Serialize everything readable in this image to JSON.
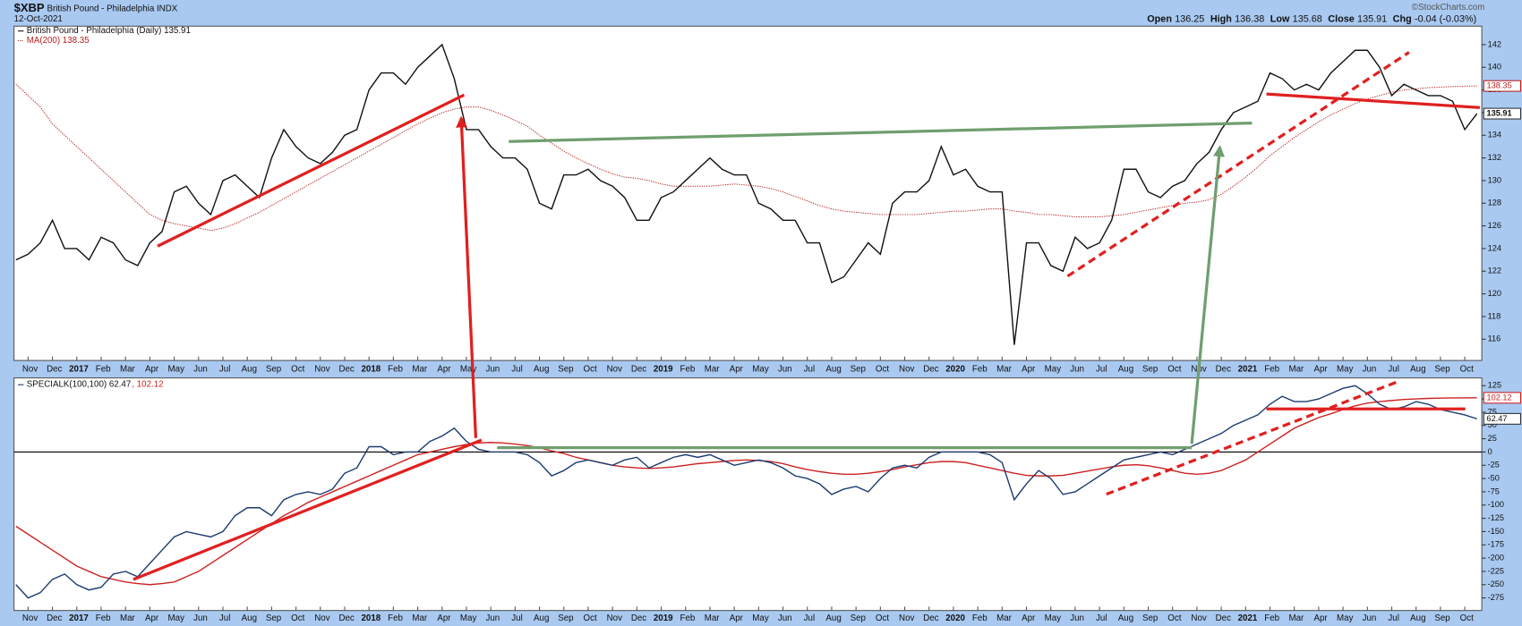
{
  "header": {
    "symbol": "$XBP",
    "name": "British Pound - Philadelphia INDX",
    "date": "12-Oct-2021",
    "credit": "©StockCharts.com",
    "quote": [
      {
        "label": "Open",
        "value": "136.25"
      },
      {
        "label": "High",
        "value": "136.38"
      },
      {
        "label": "Low",
        "value": "135.68"
      },
      {
        "label": "Close",
        "value": "135.91"
      },
      {
        "label": "Chg",
        "value": "-0.04 (-0.03%)"
      }
    ]
  },
  "chart_data": [
    {
      "type": "line",
      "categories": [
        null,
        "Nov",
        null,
        "Dec",
        null,
        "2017",
        null,
        "Feb",
        null,
        "Mar",
        null,
        "Apr",
        null,
        "May",
        null,
        "Jun",
        null,
        "Jul",
        null,
        "Aug",
        null,
        "Sep",
        null,
        "Oct",
        null,
        "Nov",
        null,
        "Dec",
        null,
        "2018",
        null,
        "Feb",
        null,
        "Mar",
        null,
        "Apr",
        null,
        "May",
        null,
        "Jun",
        null,
        "Jul",
        null,
        "Aug",
        null,
        "Sep",
        null,
        "Oct",
        null,
        "Nov",
        null,
        "Dec",
        null,
        "2019",
        null,
        "Feb",
        null,
        "Mar",
        null,
        "Apr",
        null,
        "May",
        null,
        "Jun",
        null,
        "Jul",
        null,
        "Aug",
        null,
        "Sep",
        null,
        "Oct",
        null,
        "Nov",
        null,
        "Dec",
        null,
        "2020",
        null,
        "Feb",
        null,
        "Mar",
        null,
        "Apr",
        null,
        "May",
        null,
        "Jun",
        null,
        "Jul",
        null,
        "Aug",
        null,
        "Sep",
        null,
        "Oct",
        null,
        "Nov",
        null,
        "Dec",
        null,
        "2021",
        null,
        "Feb",
        null,
        "Mar",
        null,
        "Apr",
        null,
        "May",
        null,
        "Jun",
        null,
        "Jul",
        null,
        "Aug",
        null,
        "Sep",
        null,
        "Oct",
        null
      ],
      "series": [
        {
          "name": "British Pound - Philadelphia (Daily) 135.91",
          "color": "#111111",
          "style": "solid",
          "values": [
            123,
            123.5,
            124.5,
            126.5,
            124,
            124,
            123,
            125,
            124.5,
            123,
            122.5,
            124.5,
            125.5,
            129,
            129.5,
            128,
            127,
            130,
            130.5,
            129.5,
            128.5,
            132,
            134.5,
            133,
            132,
            131.5,
            132.5,
            134,
            134.5,
            138,
            139.5,
            139.5,
            138.5,
            140,
            141,
            142,
            139,
            134.5,
            134.5,
            133,
            132,
            132,
            131,
            128,
            127.5,
            130.5,
            130.5,
            131,
            130,
            129.5,
            128.5,
            126.5,
            126.5,
            128.5,
            129,
            130,
            131,
            132,
            131,
            130.5,
            130.5,
            128,
            127.5,
            126.5,
            126.5,
            124.5,
            124.5,
            121,
            121.5,
            123,
            124.5,
            123.5,
            128,
            129,
            129,
            130,
            133,
            130.5,
            131,
            129.5,
            129,
            129,
            115.5,
            124.5,
            124.5,
            122.5,
            122,
            125,
            124,
            124.5,
            126.5,
            131,
            131,
            129,
            128.5,
            129.5,
            130,
            131.5,
            132.5,
            134.5,
            136,
            136.5,
            137,
            139.5,
            139,
            138,
            138.5,
            138,
            139.5,
            140.5,
            141.5,
            141.5,
            140,
            137.5,
            138.5,
            138,
            137.5,
            137.5,
            137,
            134.5,
            135.91
          ]
        },
        {
          "name": "MA(200) 138.35",
          "color": "#b52020",
          "style": "dotted",
          "values": [
            138.5,
            137.5,
            136.5,
            135,
            134,
            133,
            132,
            131,
            130,
            129,
            128,
            127,
            126.5,
            126.2,
            126,
            125.8,
            125.6,
            125.8,
            126.2,
            126.7,
            127.2,
            127.8,
            128.4,
            129,
            129.6,
            130.2,
            130.8,
            131.4,
            132,
            132.6,
            133.2,
            133.8,
            134.4,
            135,
            135.5,
            136,
            136.3,
            136.5,
            136.5,
            136.2,
            135.8,
            135.3,
            134.8,
            134,
            133.3,
            132.6,
            132,
            131.5,
            131,
            130.6,
            130.3,
            130.2,
            130,
            129.7,
            129.5,
            129.5,
            129.5,
            129.5,
            129.6,
            129.7,
            129.6,
            129.5,
            129.3,
            129,
            128.6,
            128.2,
            127.8,
            127.5,
            127.3,
            127.2,
            127.1,
            127,
            127,
            127,
            127,
            127.1,
            127.2,
            127.3,
            127.3,
            127.4,
            127.5,
            127.5,
            127.3,
            127.2,
            127,
            127,
            126.9,
            126.8,
            126.8,
            126.8,
            126.9,
            127,
            127.2,
            127.4,
            127.6,
            127.8,
            128,
            128.1,
            128.3,
            128.8,
            129.5,
            130.3,
            131.2,
            132.2,
            133,
            133.8,
            134.5,
            135.2,
            135.8,
            136.3,
            136.8,
            137.2,
            137.5,
            137.8,
            138,
            138.1,
            138.2,
            138.25,
            138.3,
            138.33,
            138.35
          ]
        }
      ],
      "ylim": [
        114.12,
        143.63
      ],
      "yticks": [
        116,
        118,
        120,
        122,
        124,
        126,
        128,
        130,
        132,
        134,
        136,
        138,
        140,
        142
      ],
      "grid": false
    },
    {
      "type": "line",
      "categories": [
        null,
        "Nov",
        null,
        "Dec",
        null,
        "2017",
        null,
        "Feb",
        null,
        "Mar",
        null,
        "Apr",
        null,
        "May",
        null,
        "Jun",
        null,
        "Jul",
        null,
        "Aug",
        null,
        "Sep",
        null,
        "Oct",
        null,
        "Nov",
        null,
        "Dec",
        null,
        "2018",
        null,
        "Feb",
        null,
        "Mar",
        null,
        "Apr",
        null,
        "May",
        null,
        "Jun",
        null,
        "Jul",
        null,
        "Aug",
        null,
        "Sep",
        null,
        "Oct",
        null,
        "Nov",
        null,
        "Dec",
        null,
        "2019",
        null,
        "Feb",
        null,
        "Mar",
        null,
        "Apr",
        null,
        "May",
        null,
        "Jun",
        null,
        "Jul",
        null,
        "Aug",
        null,
        "Sep",
        null,
        "Oct",
        null,
        "Nov",
        null,
        "Dec",
        null,
        "2020",
        null,
        "Feb",
        null,
        "Mar",
        null,
        "Apr",
        null,
        "May",
        null,
        "Jun",
        null,
        "Jul",
        null,
        "Aug",
        null,
        "Sep",
        null,
        "Oct",
        null,
        "Nov",
        null,
        "Dec",
        null,
        "2021",
        null,
        "Feb",
        null,
        "Mar",
        null,
        "Apr",
        null,
        "May",
        null,
        "Jun",
        null,
        "Jul",
        null,
        "Aug",
        null,
        "Sep",
        null,
        "Oct",
        null
      ],
      "series": [
        {
          "name": "SPECIALK(100,100) 62.47",
          "color": "#1c3b70",
          "style": "solid",
          "values": [
            -250,
            -275,
            -265,
            -240,
            -230,
            -250,
            -260,
            -255,
            -230,
            -225,
            -235,
            -210,
            -185,
            -160,
            -150,
            -155,
            -160,
            -150,
            -120,
            -105,
            -105,
            -120,
            -90,
            -80,
            -75,
            -80,
            -70,
            -40,
            -30,
            10,
            10,
            -5,
            0,
            0,
            20,
            30,
            45,
            20,
            5,
            0,
            0,
            0,
            -5,
            -20,
            -45,
            -35,
            -20,
            -15,
            -20,
            -25,
            -15,
            -10,
            -30,
            -20,
            -10,
            -5,
            -10,
            -5,
            -15,
            -25,
            -20,
            -15,
            -20,
            -30,
            -45,
            -50,
            -60,
            -80,
            -70,
            -65,
            -75,
            -50,
            -30,
            -25,
            -30,
            -10,
            0,
            0,
            0,
            0,
            -5,
            -20,
            -90,
            -60,
            -35,
            -50,
            -80,
            -75,
            -60,
            -45,
            -30,
            -15,
            -10,
            -5,
            0,
            -5,
            5,
            15,
            25,
            35,
            50,
            60,
            70,
            90,
            105,
            95,
            95,
            100,
            110,
            120,
            125,
            110,
            90,
            80,
            85,
            95,
            90,
            80,
            75,
            70,
            62.47
          ]
        },
        {
          "name": ", 102.12",
          "color": "#cc2222",
          "style": "solid",
          "values": [
            -140,
            -155,
            -170,
            -185,
            -200,
            -215,
            -225,
            -235,
            -240,
            -245,
            -248,
            -250,
            -248,
            -245,
            -235,
            -225,
            -210,
            -195,
            -180,
            -165,
            -150,
            -135,
            -120,
            -108,
            -95,
            -85,
            -75,
            -65,
            -55,
            -45,
            -35,
            -25,
            -15,
            -5,
            0,
            5,
            10,
            14,
            17,
            18,
            17,
            15,
            12,
            8,
            2,
            -3,
            -10,
            -15,
            -20,
            -25,
            -28,
            -30,
            -31,
            -30,
            -28,
            -25,
            -22,
            -20,
            -18,
            -16,
            -15,
            -16,
            -18,
            -22,
            -28,
            -33,
            -37,
            -40,
            -42,
            -42,
            -40,
            -37,
            -33,
            -28,
            -24,
            -20,
            -18,
            -18,
            -20,
            -25,
            -30,
            -35,
            -40,
            -44,
            -45,
            -45,
            -44,
            -40,
            -36,
            -32,
            -28,
            -25,
            -24,
            -26,
            -30,
            -35,
            -40,
            -42,
            -40,
            -35,
            -25,
            -15,
            0,
            15,
            30,
            45,
            55,
            65,
            72,
            80,
            87,
            92,
            95,
            97,
            99,
            100,
            101,
            101.5,
            102,
            102,
            102.12
          ]
        }
      ],
      "ylim": [
        -298.7,
        139.6
      ],
      "yticks": [
        -275,
        -250,
        -225,
        -200,
        -175,
        -150,
        -125,
        -100,
        -75,
        -50,
        -25,
        0,
        25,
        50,
        75,
        100,
        125
      ],
      "grid": false,
      "zero_line": true
    }
  ]
}
